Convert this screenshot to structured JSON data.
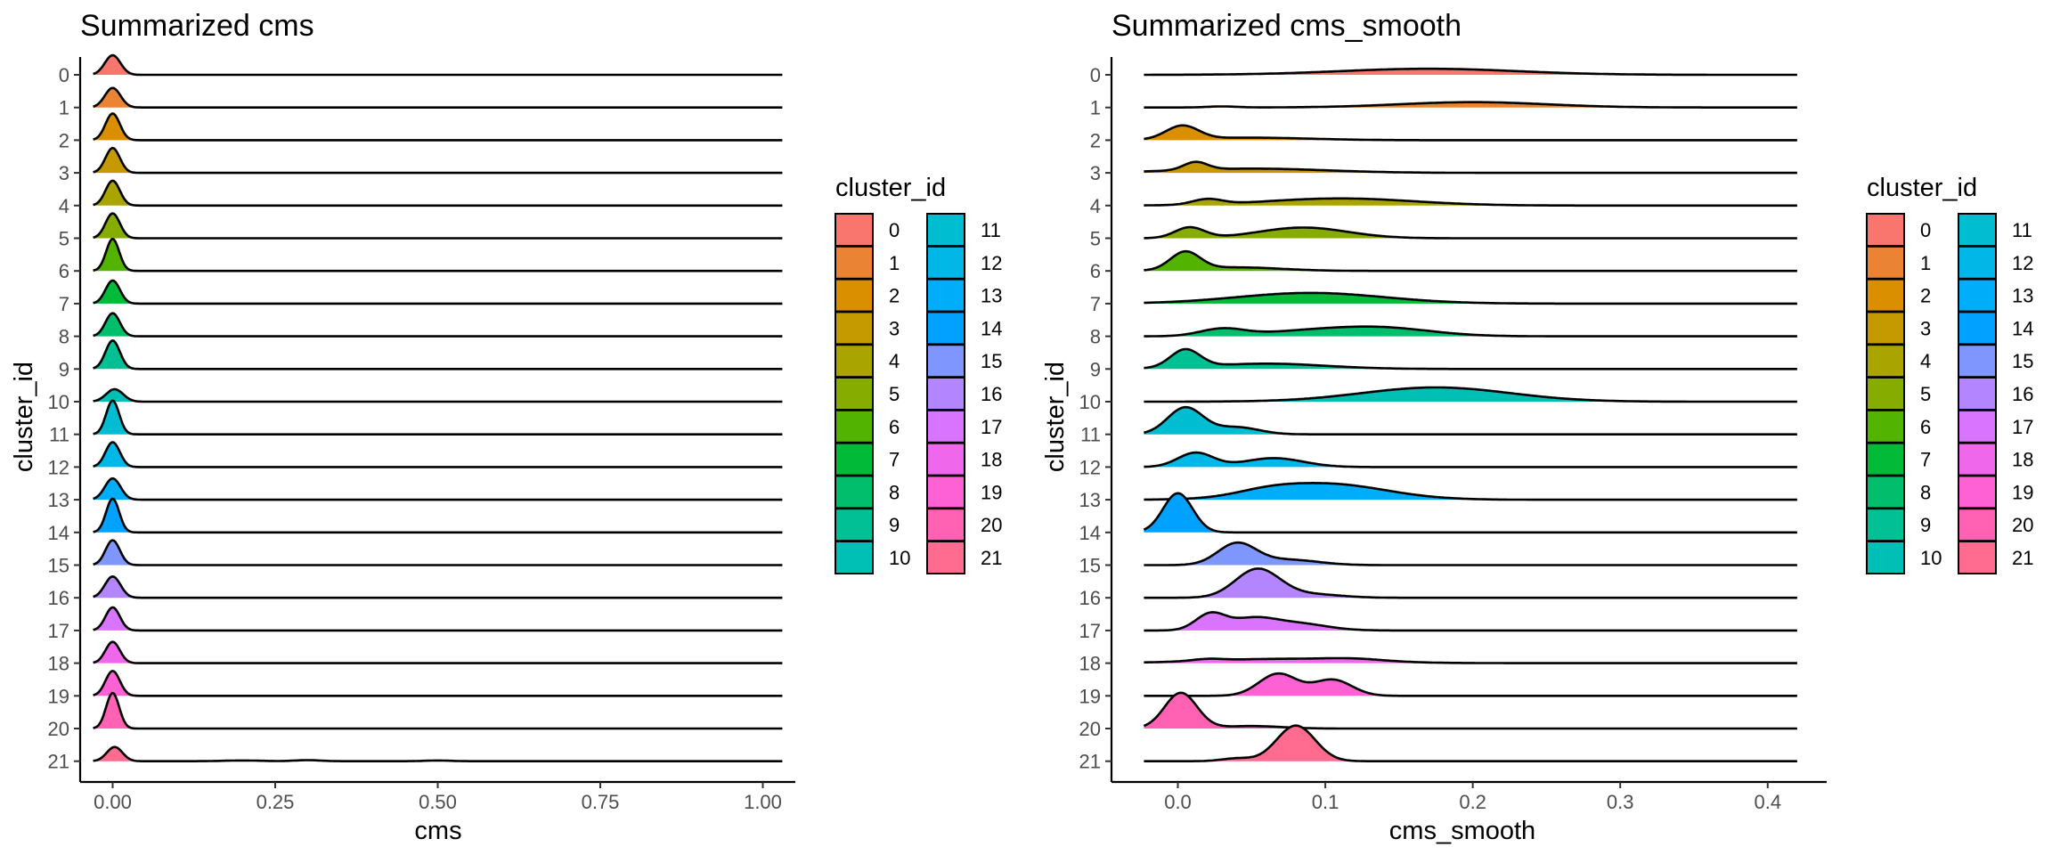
{
  "colors": [
    "#F8766D",
    "#EB8335",
    "#DA8F00",
    "#C49A00",
    "#A9A400",
    "#86AC00",
    "#53B400",
    "#00BA38",
    "#00BE6C",
    "#00C094",
    "#00C0B5",
    "#00BDD1",
    "#00B7E8",
    "#00ADF9",
    "#00A1FF",
    "#7F96FF",
    "#B385FF",
    "#D874FD",
    "#EF67EB",
    "#FD61D3",
    "#FF62B3",
    "#FF6C90"
  ],
  "chart_data": [
    {
      "type": "ridgeline",
      "title": "Summarized cms",
      "xlabel": "cms",
      "ylabel": "cluster_id",
      "xlim": [
        -0.05,
        1.05
      ],
      "x_ticks": [
        0.0,
        0.25,
        0.5,
        0.75,
        1.0
      ],
      "x_tick_labels": [
        "0.00",
        "0.25",
        "0.50",
        "0.75",
        "1.00"
      ],
      "x_range": [
        -0.03,
        1.03
      ],
      "categories": [
        "0",
        "1",
        "2",
        "3",
        "4",
        "5",
        "6",
        "7",
        "8",
        "9",
        "10",
        "11",
        "12",
        "13",
        "14",
        "15",
        "16",
        "17",
        "18",
        "19",
        "20",
        "21"
      ],
      "legend_title": "cluster_id",
      "legend_position": "right",
      "grid": false,
      "series": [
        {
          "name": "0",
          "peaks": [
            [
              0.0,
              0.012,
              0.55
            ]
          ]
        },
        {
          "name": "1",
          "peaks": [
            [
              0.0,
              0.012,
              0.55
            ]
          ]
        },
        {
          "name": "2",
          "peaks": [
            [
              0.0,
              0.011,
              0.75
            ]
          ]
        },
        {
          "name": "3",
          "peaks": [
            [
              0.0,
              0.011,
              0.7
            ]
          ]
        },
        {
          "name": "4",
          "peaks": [
            [
              0.0,
              0.011,
              0.7
            ]
          ]
        },
        {
          "name": "5",
          "peaks": [
            [
              0.0,
              0.011,
              0.7
            ]
          ]
        },
        {
          "name": "6",
          "peaks": [
            [
              0.0,
              0.01,
              0.9
            ]
          ]
        },
        {
          "name": "7",
          "peaks": [
            [
              0.0,
              0.011,
              0.65
            ]
          ]
        },
        {
          "name": "8",
          "peaks": [
            [
              0.0,
              0.011,
              0.65
            ]
          ]
        },
        {
          "name": "9",
          "peaks": [
            [
              0.0,
              0.011,
              0.8
            ]
          ]
        },
        {
          "name": "10",
          "peaks": [
            [
              0.003,
              0.013,
              0.35
            ]
          ]
        },
        {
          "name": "11",
          "peaks": [
            [
              0.0,
              0.01,
              0.95
            ]
          ]
        },
        {
          "name": "12",
          "peaks": [
            [
              0.0,
              0.011,
              0.7
            ]
          ]
        },
        {
          "name": "13",
          "peaks": [
            [
              0.0,
              0.012,
              0.6
            ]
          ]
        },
        {
          "name": "14",
          "peaks": [
            [
              0.0,
              0.01,
              0.95
            ]
          ]
        },
        {
          "name": "15",
          "peaks": [
            [
              0.0,
              0.011,
              0.7
            ]
          ]
        },
        {
          "name": "16",
          "peaks": [
            [
              0.0,
              0.012,
              0.6
            ]
          ]
        },
        {
          "name": "17",
          "peaks": [
            [
              0.0,
              0.011,
              0.65
            ]
          ]
        },
        {
          "name": "18",
          "peaks": [
            [
              0.0,
              0.011,
              0.6
            ]
          ]
        },
        {
          "name": "19",
          "peaks": [
            [
              0.0,
              0.011,
              0.7
            ]
          ]
        },
        {
          "name": "20",
          "peaks": [
            [
              0.0,
              0.01,
              1.0
            ]
          ]
        },
        {
          "name": "21",
          "peaks": [
            [
              0.003,
              0.012,
              0.4
            ],
            [
              0.2,
              0.03,
              0.02
            ],
            [
              0.3,
              0.02,
              0.03
            ],
            [
              0.5,
              0.02,
              0.02
            ]
          ]
        }
      ]
    },
    {
      "type": "ridgeline",
      "title": "Summarized cms_smooth",
      "xlabel": "cms_smooth",
      "ylabel": "cluster_id",
      "xlim": [
        -0.045,
        0.44
      ],
      "x_ticks": [
        0.0,
        0.1,
        0.2,
        0.3,
        0.4
      ],
      "x_tick_labels": [
        "0.0",
        "0.1",
        "0.2",
        "0.3",
        "0.4"
      ],
      "x_range": [
        -0.023,
        0.42
      ],
      "categories": [
        "0",
        "1",
        "2",
        "3",
        "4",
        "5",
        "6",
        "7",
        "8",
        "9",
        "10",
        "11",
        "12",
        "13",
        "14",
        "15",
        "16",
        "17",
        "18",
        "19",
        "20",
        "21"
      ],
      "legend_title": "cluster_id",
      "legend_position": "right",
      "grid": false,
      "series": [
        {
          "name": "0",
          "peaks": [
            [
              0.17,
              0.06,
              0.17
            ]
          ]
        },
        {
          "name": "1",
          "peaks": [
            [
              0.2,
              0.05,
              0.15
            ],
            [
              0.03,
              0.01,
              0.03
            ]
          ]
        },
        {
          "name": "2",
          "peaks": [
            [
              0.003,
              0.011,
              0.38
            ],
            [
              0.05,
              0.04,
              0.07
            ]
          ]
        },
        {
          "name": "3",
          "peaks": [
            [
              0.012,
              0.008,
              0.22
            ],
            [
              0.05,
              0.05,
              0.12
            ]
          ]
        },
        {
          "name": "4",
          "peaks": [
            [
              0.02,
              0.01,
              0.15
            ],
            [
              0.11,
              0.05,
              0.2
            ]
          ]
        },
        {
          "name": "5",
          "peaks": [
            [
              0.008,
              0.01,
              0.3
            ],
            [
              0.085,
              0.03,
              0.3
            ]
          ]
        },
        {
          "name": "6",
          "peaks": [
            [
              0.005,
              0.01,
              0.5
            ],
            [
              0.04,
              0.03,
              0.1
            ]
          ]
        },
        {
          "name": "7",
          "peaks": [
            [
              0.09,
              0.05,
              0.3
            ]
          ]
        },
        {
          "name": "8",
          "peaks": [
            [
              0.03,
              0.015,
              0.2
            ],
            [
              0.135,
              0.035,
              0.25
            ],
            [
              0.08,
              0.03,
              0.1
            ]
          ]
        },
        {
          "name": "9",
          "peaks": [
            [
              0.005,
              0.01,
              0.5
            ],
            [
              0.06,
              0.04,
              0.15
            ]
          ]
        },
        {
          "name": "10",
          "peaks": [
            [
              0.175,
              0.05,
              0.4
            ]
          ]
        },
        {
          "name": "11",
          "peaks": [
            [
              0.005,
              0.012,
              0.75
            ],
            [
              0.04,
              0.015,
              0.2
            ]
          ]
        },
        {
          "name": "12",
          "peaks": [
            [
              0.012,
              0.012,
              0.4
            ],
            [
              0.065,
              0.02,
              0.25
            ]
          ]
        },
        {
          "name": "13",
          "peaks": [
            [
              0.1,
              0.04,
              0.45
            ],
            [
              0.06,
              0.02,
              0.1
            ]
          ]
        },
        {
          "name": "14",
          "peaks": [
            [
              0.0,
              0.01,
              1.1
            ]
          ]
        },
        {
          "name": "15",
          "peaks": [
            [
              0.04,
              0.013,
              0.6
            ],
            [
              0.075,
              0.02,
              0.15
            ]
          ]
        },
        {
          "name": "16",
          "peaks": [
            [
              0.054,
              0.015,
              0.8
            ],
            [
              0.09,
              0.02,
              0.1
            ]
          ]
        },
        {
          "name": "17",
          "peaks": [
            [
              0.022,
              0.01,
              0.45
            ],
            [
              0.05,
              0.015,
              0.3
            ],
            [
              0.08,
              0.02,
              0.2
            ]
          ]
        },
        {
          "name": "18",
          "peaks": [
            [
              0.07,
              0.05,
              0.12
            ],
            [
              0.12,
              0.02,
              0.06
            ],
            [
              0.02,
              0.01,
              0.05
            ]
          ]
        },
        {
          "name": "19",
          "peaks": [
            [
              0.068,
              0.013,
              0.62
            ],
            [
              0.105,
              0.013,
              0.45
            ]
          ]
        },
        {
          "name": "20",
          "peaks": [
            [
              0.002,
              0.011,
              1.0
            ],
            [
              0.05,
              0.02,
              0.07
            ]
          ]
        },
        {
          "name": "21",
          "peaks": [
            [
              0.08,
              0.013,
              1.0
            ],
            [
              0.04,
              0.01,
              0.08
            ]
          ]
        }
      ]
    }
  ]
}
